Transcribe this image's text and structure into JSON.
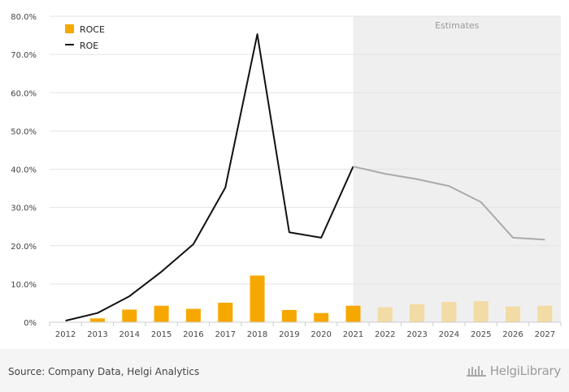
{
  "chart_data": {
    "type": "bar",
    "categories": [
      "2012",
      "2013",
      "2014",
      "2015",
      "2016",
      "2017",
      "2018",
      "2019",
      "2020",
      "2021",
      "2022",
      "2023",
      "2024",
      "2025",
      "2026",
      "2027"
    ],
    "series": [
      {
        "name": "ROCE",
        "kind": "bar",
        "color": "#f7a800",
        "estimate_color": "#f3dba5",
        "values": [
          0.0,
          1.0,
          3.3,
          4.3,
          3.5,
          5.1,
          12.2,
          3.2,
          2.4,
          4.3,
          3.9,
          4.7,
          5.3,
          5.5,
          4.1,
          4.3
        ]
      },
      {
        "name": "ROE",
        "kind": "line",
        "color": "#111111",
        "estimate_color": "#aaaaaa",
        "values": [
          0.4,
          2.4,
          6.8,
          13.2,
          20.4,
          35.2,
          75.3,
          23.5,
          22.1,
          40.7,
          38.8,
          37.4,
          35.6,
          31.4,
          22.1,
          21.6
        ]
      }
    ],
    "estimates_start": "2021",
    "estimates_label": "Estimates",
    "ylim": [
      0,
      80
    ],
    "yticks": [
      "0%",
      "10.0%",
      "20.0%",
      "30.0%",
      "40.0%",
      "50.0%",
      "60.0%",
      "70.0%",
      "80.0%"
    ],
    "ytick_values": [
      0,
      10,
      20,
      30,
      40,
      50,
      60,
      70,
      80
    ],
    "grid": true,
    "legend_position": "top-left",
    "xlabel": "",
    "ylabel": ""
  },
  "footer": {
    "source": "Source: Company Data, Helgi Analytics",
    "brand": "HelgiLibrary"
  }
}
